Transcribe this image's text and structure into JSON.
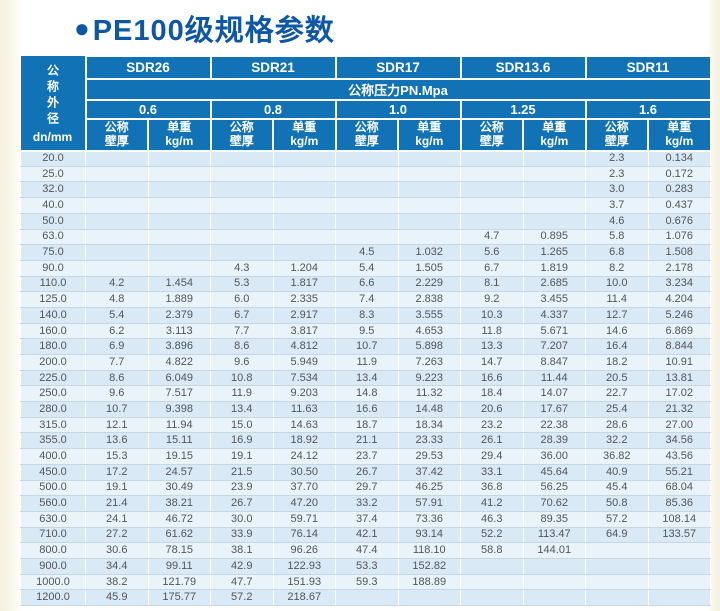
{
  "page": {
    "title_bullet": "●",
    "title": "PE100级规格参数"
  },
  "colors": {
    "header_blue": "#1173b5",
    "title_blue": "#0e57a5",
    "row_odd": "#d9e9f5",
    "row_even": "#eaf3fa",
    "page_edge_cream": "#f8f4e6"
  },
  "table": {
    "corner": {
      "vertical_label": "公称外径",
      "unit_label": "dn/mm"
    },
    "sdr_groups": [
      "SDR26",
      "SDR21",
      "SDR17",
      "SDR13.6",
      "SDR11"
    ],
    "pressure_title": "公称压力PN.Mpa",
    "pressures": [
      "0.6",
      "0.8",
      "1.0",
      "1.25",
      "1.6"
    ],
    "col_headers": {
      "thickness": [
        "公称",
        "壁厚"
      ],
      "weight": [
        "单重",
        "kg/m"
      ]
    },
    "rows": [
      {
        "dn": "20.0",
        "cells": [
          "",
          "",
          "",
          "",
          "",
          "",
          "",
          "",
          "2.3",
          "0.134"
        ]
      },
      {
        "dn": "25.0",
        "cells": [
          "",
          "",
          "",
          "",
          "",
          "",
          "",
          "",
          "2.3",
          "0.172"
        ]
      },
      {
        "dn": "32.0",
        "cells": [
          "",
          "",
          "",
          "",
          "",
          "",
          "",
          "",
          "3.0",
          "0.283"
        ]
      },
      {
        "dn": "40.0",
        "cells": [
          "",
          "",
          "",
          "",
          "",
          "",
          "",
          "",
          "3.7",
          "0.437"
        ]
      },
      {
        "dn": "50.0",
        "cells": [
          "",
          "",
          "",
          "",
          "",
          "",
          "",
          "",
          "4.6",
          "0.676"
        ]
      },
      {
        "dn": "63.0",
        "cells": [
          "",
          "",
          "",
          "",
          "",
          "",
          "4.7",
          "0.895",
          "5.8",
          "1.076"
        ]
      },
      {
        "dn": "75.0",
        "cells": [
          "",
          "",
          "",
          "",
          "4.5",
          "1.032",
          "5.6",
          "1.265",
          "6.8",
          "1.508"
        ]
      },
      {
        "dn": "90.0",
        "cells": [
          "",
          "",
          "4.3",
          "1.204",
          "5.4",
          "1.505",
          "6.7",
          "1.819",
          "8.2",
          "2.178"
        ]
      },
      {
        "dn": "110.0",
        "cells": [
          "4.2",
          "1.454",
          "5.3",
          "1.817",
          "6.6",
          "2.229",
          "8.1",
          "2.685",
          "10.0",
          "3.234"
        ]
      },
      {
        "dn": "125.0",
        "cells": [
          "4.8",
          "1.889",
          "6.0",
          "2.335",
          "7.4",
          "2.838",
          "9.2",
          "3.455",
          "11.4",
          "4.204"
        ]
      },
      {
        "dn": "140.0",
        "cells": [
          "5.4",
          "2.379",
          "6.7",
          "2.917",
          "8.3",
          "3.555",
          "10.3",
          "4.337",
          "12.7",
          "5.246"
        ]
      },
      {
        "dn": "160.0",
        "cells": [
          "6.2",
          "3.113",
          "7.7",
          "3.817",
          "9.5",
          "4.653",
          "11.8",
          "5.671",
          "14.6",
          "6.869"
        ]
      },
      {
        "dn": "180.0",
        "cells": [
          "6.9",
          "3.896",
          "8.6",
          "4.812",
          "10.7",
          "5.898",
          "13.3",
          "7.207",
          "16.4",
          "8.844"
        ]
      },
      {
        "dn": "200.0",
        "cells": [
          "7.7",
          "4.822",
          "9.6",
          "5.949",
          "11.9",
          "7.263",
          "14.7",
          "8.847",
          "18.2",
          "10.91"
        ]
      },
      {
        "dn": "225.0",
        "cells": [
          "8.6",
          "6.049",
          "10.8",
          "7.534",
          "13.4",
          "9.223",
          "16.6",
          "11.44",
          "20.5",
          "13.81"
        ]
      },
      {
        "dn": "250.0",
        "cells": [
          "9.6",
          "7.517",
          "11.9",
          "9.203",
          "14.8",
          "11.32",
          "18.4",
          "14.07",
          "22.7",
          "17.02"
        ]
      },
      {
        "dn": "280.0",
        "cells": [
          "10.7",
          "9.398",
          "13.4",
          "11.63",
          "16.6",
          "14.48",
          "20.6",
          "17.67",
          "25.4",
          "21.32"
        ]
      },
      {
        "dn": "315.0",
        "cells": [
          "12.1",
          "11.94",
          "15.0",
          "14.63",
          "18.7",
          "18.34",
          "23.2",
          "22.38",
          "28.6",
          "27.00"
        ]
      },
      {
        "dn": "355.0",
        "cells": [
          "13.6",
          "15.11",
          "16.9",
          "18.92",
          "21.1",
          "23.33",
          "26.1",
          "28.39",
          "32.2",
          "34.56"
        ]
      },
      {
        "dn": "400.0",
        "cells": [
          "15.3",
          "19.15",
          "19.1",
          "24.12",
          "23.7",
          "29.53",
          "29.4",
          "36.00",
          "36.82",
          "43.56"
        ]
      },
      {
        "dn": "450.0",
        "cells": [
          "17.2",
          "24.57",
          "21.5",
          "30.50",
          "26.7",
          "37.42",
          "33.1",
          "45.64",
          "40.9",
          "55.21"
        ]
      },
      {
        "dn": "500.0",
        "cells": [
          "19.1",
          "30.49",
          "23.9",
          "37.70",
          "29.7",
          "46.25",
          "36.8",
          "56.25",
          "45.4",
          "68.04"
        ]
      },
      {
        "dn": "560.0",
        "cells": [
          "21.4",
          "38.21",
          "26.7",
          "47.20",
          "33.2",
          "57.91",
          "41.2",
          "70.62",
          "50.8",
          "85.36"
        ]
      },
      {
        "dn": "630.0",
        "cells": [
          "24.1",
          "46.72",
          "30.0",
          "59.71",
          "37.4",
          "73.36",
          "46.3",
          "89.35",
          "57.2",
          "108.14"
        ]
      },
      {
        "dn": "710.0",
        "cells": [
          "27.2",
          "61.62",
          "33.9",
          "76.14",
          "42.1",
          "93.14",
          "52.2",
          "113.47",
          "64.9",
          "133.57"
        ]
      },
      {
        "dn": "800.0",
        "cells": [
          "30.6",
          "78.15",
          "38.1",
          "96.26",
          "47.4",
          "118.10",
          "58.8",
          "144.01",
          "",
          ""
        ]
      },
      {
        "dn": "900.0",
        "cells": [
          "34.4",
          "99.11",
          "42.9",
          "122.93",
          "53.3",
          "152.82",
          "",
          "",
          "",
          ""
        ]
      },
      {
        "dn": "1000.0",
        "cells": [
          "38.2",
          "121.79",
          "47.7",
          "151.93",
          "59.3",
          "188.89",
          "",
          "",
          "",
          ""
        ]
      },
      {
        "dn": "1200.0",
        "cells": [
          "45.9",
          "175.77",
          "57.2",
          "218.67",
          "",
          "",
          "",
          "",
          "",
          ""
        ]
      }
    ]
  }
}
